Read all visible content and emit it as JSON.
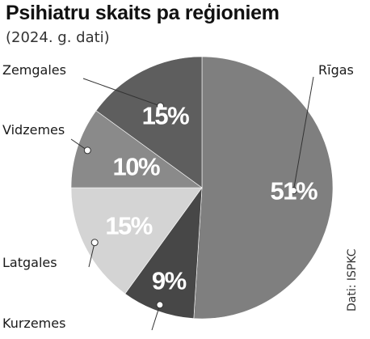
{
  "header": {
    "title": "Psihiatru skaits pa reģioniem",
    "subtitle": "(2024. g. dati)",
    "source": "Dati: ISPKC"
  },
  "colors": {
    "slice_dark": "#555555",
    "slice_mid_dark": "#636363",
    "slice_gray": "#7f7f7f",
    "slice_light": "#d4d4d4",
    "slice_darkest": "#474747",
    "leader_dot": "#ffffff",
    "label_text": "#1a1a1a"
  },
  "chart_data": {
    "type": "pie",
    "title": "Psihiatru skaits pa reģioniem",
    "subtitle": "(2024. g. dati)",
    "unit": "%",
    "slices": [
      {
        "label": "Rīgas",
        "value": 51,
        "value_label": "51%",
        "color": "#7f7f7f"
      },
      {
        "label": "Kurzemes",
        "value": 9,
        "value_label": "9%",
        "color": "#474747"
      },
      {
        "label": "Latgales",
        "value": 15,
        "value_label": "15%",
        "color": "#d4d4d4"
      },
      {
        "label": "Vidzemes",
        "value": 10,
        "value_label": "10%",
        "color": "#8a8a8a"
      },
      {
        "label": "Zemgales",
        "value": 15,
        "value_label": "15%",
        "color": "#5e5e5e"
      }
    ],
    "legend": "none",
    "source": "Dati: ISPKC"
  }
}
